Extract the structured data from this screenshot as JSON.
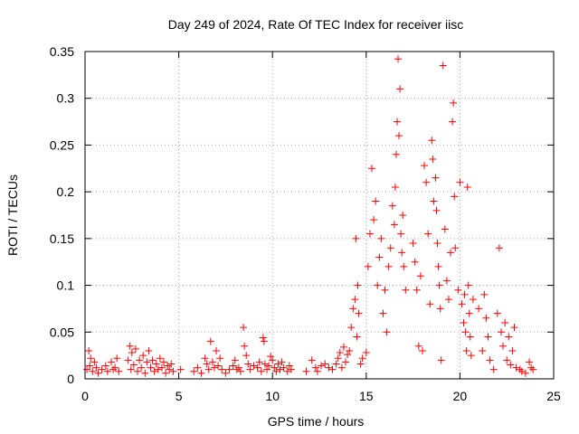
{
  "chart_data": {
    "type": "scatter",
    "title": "Day 249 of 2024, Rate Of TEC Index for receiver iisc",
    "xlabel": "GPS time / hours",
    "ylabel": "ROTI / TECUs",
    "xlim": [
      0,
      25
    ],
    "ylim": [
      0,
      0.35
    ],
    "x_ticks": [
      "0",
      "5",
      "10",
      "15",
      "20",
      "25"
    ],
    "y_ticks": [
      "0",
      "0.05",
      "0.1",
      "0.15",
      "0.2",
      "0.25",
      "0.3",
      "0.35"
    ],
    "grid": true,
    "marker": "+",
    "color": "#ff0000",
    "points": [
      [
        0.1,
        0.01
      ],
      [
        0.2,
        0.03
      ],
      [
        0.25,
        0.014
      ],
      [
        0.3,
        0.022
      ],
      [
        0.4,
        0.008
      ],
      [
        0.5,
        0.018
      ],
      [
        0.6,
        0.012
      ],
      [
        0.7,
        0.006
      ],
      [
        0.9,
        0.01
      ],
      [
        1.1,
        0.014
      ],
      [
        1.2,
        0.008
      ],
      [
        1.4,
        0.018
      ],
      [
        1.5,
        0.01
      ],
      [
        1.6,
        0.012
      ],
      [
        1.7,
        0.022
      ],
      [
        1.8,
        0.008
      ],
      [
        2.3,
        0.02
      ],
      [
        2.4,
        0.035
      ],
      [
        2.45,
        0.01
      ],
      [
        2.5,
        0.028
      ],
      [
        2.6,
        0.015
      ],
      [
        2.7,
        0.032
      ],
      [
        2.8,
        0.008
      ],
      [
        2.9,
        0.02
      ],
      [
        3.0,
        0.012
      ],
      [
        3.1,
        0.025
      ],
      [
        3.2,
        0.006
      ],
      [
        3.3,
        0.018
      ],
      [
        3.4,
        0.03
      ],
      [
        3.5,
        0.012
      ],
      [
        3.6,
        0.02
      ],
      [
        3.7,
        0.008
      ],
      [
        3.8,
        0.016
      ],
      [
        3.9,
        0.01
      ],
      [
        4.0,
        0.022
      ],
      [
        4.1,
        0.012
      ],
      [
        4.2,
        0.018
      ],
      [
        4.3,
        0.006
      ],
      [
        4.4,
        0.014
      ],
      [
        4.5,
        0.01
      ],
      [
        4.6,
        0.016
      ],
      [
        4.7,
        0.008
      ],
      [
        5.1,
        0.01
      ],
      [
        5.8,
        0.008
      ],
      [
        6.0,
        0.012
      ],
      [
        6.2,
        0.006
      ],
      [
        6.4,
        0.022
      ],
      [
        6.5,
        0.016
      ],
      [
        6.6,
        0.01
      ],
      [
        6.7,
        0.04
      ],
      [
        6.8,
        0.018
      ],
      [
        6.9,
        0.012
      ],
      [
        7.0,
        0.03
      ],
      [
        7.1,
        0.014
      ],
      [
        7.2,
        0.022
      ],
      [
        7.3,
        0.01
      ],
      [
        7.5,
        0.006
      ],
      [
        7.7,
        0.01
      ],
      [
        7.9,
        0.014
      ],
      [
        8.0,
        0.02
      ],
      [
        8.1,
        0.01
      ],
      [
        8.2,
        0.012
      ],
      [
        8.3,
        0.008
      ],
      [
        8.45,
        0.055
      ],
      [
        8.5,
        0.035
      ],
      [
        8.6,
        0.025
      ],
      [
        8.7,
        0.016
      ],
      [
        8.8,
        0.01
      ],
      [
        9.0,
        0.014
      ],
      [
        9.2,
        0.012
      ],
      [
        9.3,
        0.018
      ],
      [
        9.4,
        0.008
      ],
      [
        9.5,
        0.044
      ],
      [
        9.55,
        0.04
      ],
      [
        9.6,
        0.016
      ],
      [
        9.7,
        0.01
      ],
      [
        9.8,
        0.014
      ],
      [
        9.9,
        0.024
      ],
      [
        10.0,
        0.02
      ],
      [
        10.1,
        0.012
      ],
      [
        10.2,
        0.008
      ],
      [
        10.3,
        0.016
      ],
      [
        10.4,
        0.01
      ],
      [
        10.5,
        0.018
      ],
      [
        10.6,
        0.012
      ],
      [
        10.8,
        0.008
      ],
      [
        10.9,
        0.014
      ],
      [
        11.0,
        0.01
      ],
      [
        11.8,
        0.008
      ],
      [
        12.1,
        0.02
      ],
      [
        12.3,
        0.012
      ],
      [
        12.4,
        0.008
      ],
      [
        12.6,
        0.014
      ],
      [
        12.8,
        0.016
      ],
      [
        13.0,
        0.012
      ],
      [
        13.2,
        0.01
      ],
      [
        13.4,
        0.016
      ],
      [
        13.5,
        0.022
      ],
      [
        13.6,
        0.028
      ],
      [
        13.7,
        0.012
      ],
      [
        13.8,
        0.034
      ],
      [
        13.9,
        0.018
      ],
      [
        14.0,
        0.026
      ],
      [
        14.1,
        0.03
      ],
      [
        14.2,
        0.055
      ],
      [
        14.3,
        0.075
      ],
      [
        14.4,
        0.085
      ],
      [
        14.45,
        0.15
      ],
      [
        14.5,
        0.045
      ],
      [
        14.55,
        0.1
      ],
      [
        14.6,
        0.07
      ],
      [
        14.7,
        0.016
      ],
      [
        14.8,
        0.022
      ],
      [
        15.0,
        0.028
      ],
      [
        15.1,
        0.12
      ],
      [
        15.2,
        0.155
      ],
      [
        15.3,
        0.225
      ],
      [
        15.4,
        0.17
      ],
      [
        15.5,
        0.19
      ],
      [
        15.6,
        0.1
      ],
      [
        15.7,
        0.13
      ],
      [
        15.8,
        0.15
      ],
      [
        15.9,
        0.07
      ],
      [
        16.0,
        0.095
      ],
      [
        16.1,
        0.05
      ],
      [
        16.2,
        0.12
      ],
      [
        16.3,
        0.14
      ],
      [
        16.4,
        0.185
      ],
      [
        16.5,
        0.165
      ],
      [
        16.55,
        0.205
      ],
      [
        16.6,
        0.24
      ],
      [
        16.65,
        0.275
      ],
      [
        16.7,
        0.342
      ],
      [
        16.75,
        0.26
      ],
      [
        16.8,
        0.31
      ],
      [
        16.85,
        0.155
      ],
      [
        16.9,
        0.135
      ],
      [
        16.95,
        0.175
      ],
      [
        17.0,
        0.12
      ],
      [
        17.1,
        0.095
      ],
      [
        17.5,
        0.145
      ],
      [
        17.6,
        0.125
      ],
      [
        17.7,
        0.095
      ],
      [
        17.8,
        0.035
      ],
      [
        17.9,
        0.11
      ],
      [
        18.0,
        0.03
      ],
      [
        18.1,
        0.228
      ],
      [
        18.2,
        0.21
      ],
      [
        18.3,
        0.155
      ],
      [
        18.4,
        0.08
      ],
      [
        18.5,
        0.255
      ],
      [
        18.55,
        0.235
      ],
      [
        18.6,
        0.19
      ],
      [
        18.7,
        0.215
      ],
      [
        18.75,
        0.18
      ],
      [
        18.8,
        0.145
      ],
      [
        18.85,
        0.12
      ],
      [
        18.9,
        0.1
      ],
      [
        18.95,
        0.075
      ],
      [
        19.0,
        0.02
      ],
      [
        19.1,
        0.335
      ],
      [
        19.2,
        0.16
      ],
      [
        19.3,
        0.105
      ],
      [
        19.4,
        0.085
      ],
      [
        19.5,
        0.135
      ],
      [
        19.6,
        0.275
      ],
      [
        19.65,
        0.295
      ],
      [
        19.7,
        0.195
      ],
      [
        19.75,
        0.14
      ],
      [
        19.9,
        0.095
      ],
      [
        20.0,
        0.21
      ],
      [
        20.1,
        0.08
      ],
      [
        20.2,
        0.06
      ],
      [
        20.25,
        0.09
      ],
      [
        20.3,
        0.05
      ],
      [
        20.35,
        0.03
      ],
      [
        20.4,
        0.205
      ],
      [
        20.45,
        0.1
      ],
      [
        20.5,
        0.07
      ],
      [
        20.55,
        0.045
      ],
      [
        20.6,
        0.025
      ],
      [
        20.7,
        0.085
      ],
      [
        21.0,
        0.075
      ],
      [
        21.2,
        0.03
      ],
      [
        21.3,
        0.09
      ],
      [
        21.4,
        0.065
      ],
      [
        21.5,
        0.045
      ],
      [
        21.6,
        0.02
      ],
      [
        21.8,
        0.01
      ],
      [
        22.0,
        0.07
      ],
      [
        22.1,
        0.14
      ],
      [
        22.2,
        0.05
      ],
      [
        22.3,
        0.035
      ],
      [
        22.4,
        0.06
      ],
      [
        22.5,
        0.02
      ],
      [
        22.6,
        0.045
      ],
      [
        22.7,
        0.015
      ],
      [
        22.8,
        0.03
      ],
      [
        22.9,
        0.055
      ],
      [
        23.0,
        0.012
      ],
      [
        23.2,
        0.01
      ],
      [
        23.3,
        0.008
      ],
      [
        23.5,
        0.006
      ],
      [
        23.7,
        0.018
      ],
      [
        23.8,
        0.012
      ],
      [
        23.9,
        0.01
      ]
    ]
  }
}
